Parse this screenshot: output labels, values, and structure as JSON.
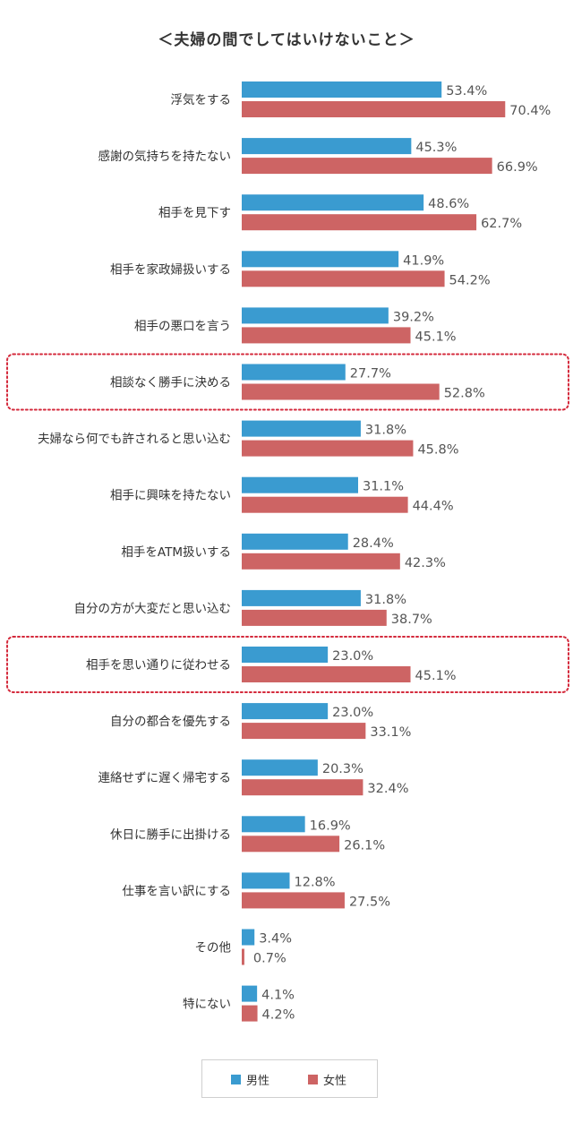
{
  "chart_data": {
    "type": "bar",
    "orientation": "horizontal",
    "title": "＜夫婦の間でしてはいけないこと＞",
    "categories": [
      "浮気をする",
      "感謝の気持ちを持たない",
      "相手を見下す",
      "相手を家政婦扱いする",
      "相手の悪口を言う",
      "相談なく勝手に決める",
      "夫婦なら何でも許されると思い込む",
      "相手に興味を持たない",
      "相手をATM扱いする",
      "自分の方が大変だと思い込む",
      "相手を思い通りに従わせる",
      "自分の都合を優先する",
      "連絡せずに遅く帰宅する",
      "休日に勝手に出掛ける",
      "仕事を言い訳にする",
      "その他",
      "特にない"
    ],
    "series": [
      {
        "name": "男性",
        "color": "#3a9bd0",
        "values": [
          53.4,
          45.3,
          48.6,
          41.9,
          39.2,
          27.7,
          31.8,
          31.1,
          28.4,
          31.8,
          23.0,
          23.0,
          20.3,
          16.9,
          12.8,
          3.4,
          4.1
        ],
        "labels": [
          "53.4%",
          "45.3%",
          "48.6%",
          "41.9%",
          "39.2%",
          "27.7%",
          "31.8%",
          "31.1%",
          "28.4%",
          "31.8%",
          "23.0%",
          "23.0%",
          "20.3%",
          "16.9%",
          "12.8%",
          "3.4%",
          "4.1%"
        ]
      },
      {
        "name": "女性",
        "color": "#cd6464",
        "values": [
          70.4,
          66.9,
          62.7,
          54.2,
          45.1,
          52.8,
          45.8,
          44.4,
          42.3,
          38.7,
          45.1,
          33.1,
          32.4,
          26.1,
          27.5,
          0.7,
          4.2
        ],
        "labels": [
          "70.4%",
          "66.9%",
          "62.7%",
          "54.2%",
          "45.1%",
          "52.8%",
          "45.8%",
          "44.4%",
          "42.3%",
          "38.7%",
          "45.1%",
          "33.1%",
          "32.4%",
          "26.1%",
          "27.5%",
          "0.7%",
          "4.2%"
        ]
      }
    ],
    "highlighted_categories": [
      "相談なく勝手に決める",
      "相手を思い通りに従わせる"
    ],
    "highlight_color": "#d42a3c",
    "xlim": [
      0,
      100
    ],
    "grid": false,
    "legend_position": "bottom-center"
  }
}
